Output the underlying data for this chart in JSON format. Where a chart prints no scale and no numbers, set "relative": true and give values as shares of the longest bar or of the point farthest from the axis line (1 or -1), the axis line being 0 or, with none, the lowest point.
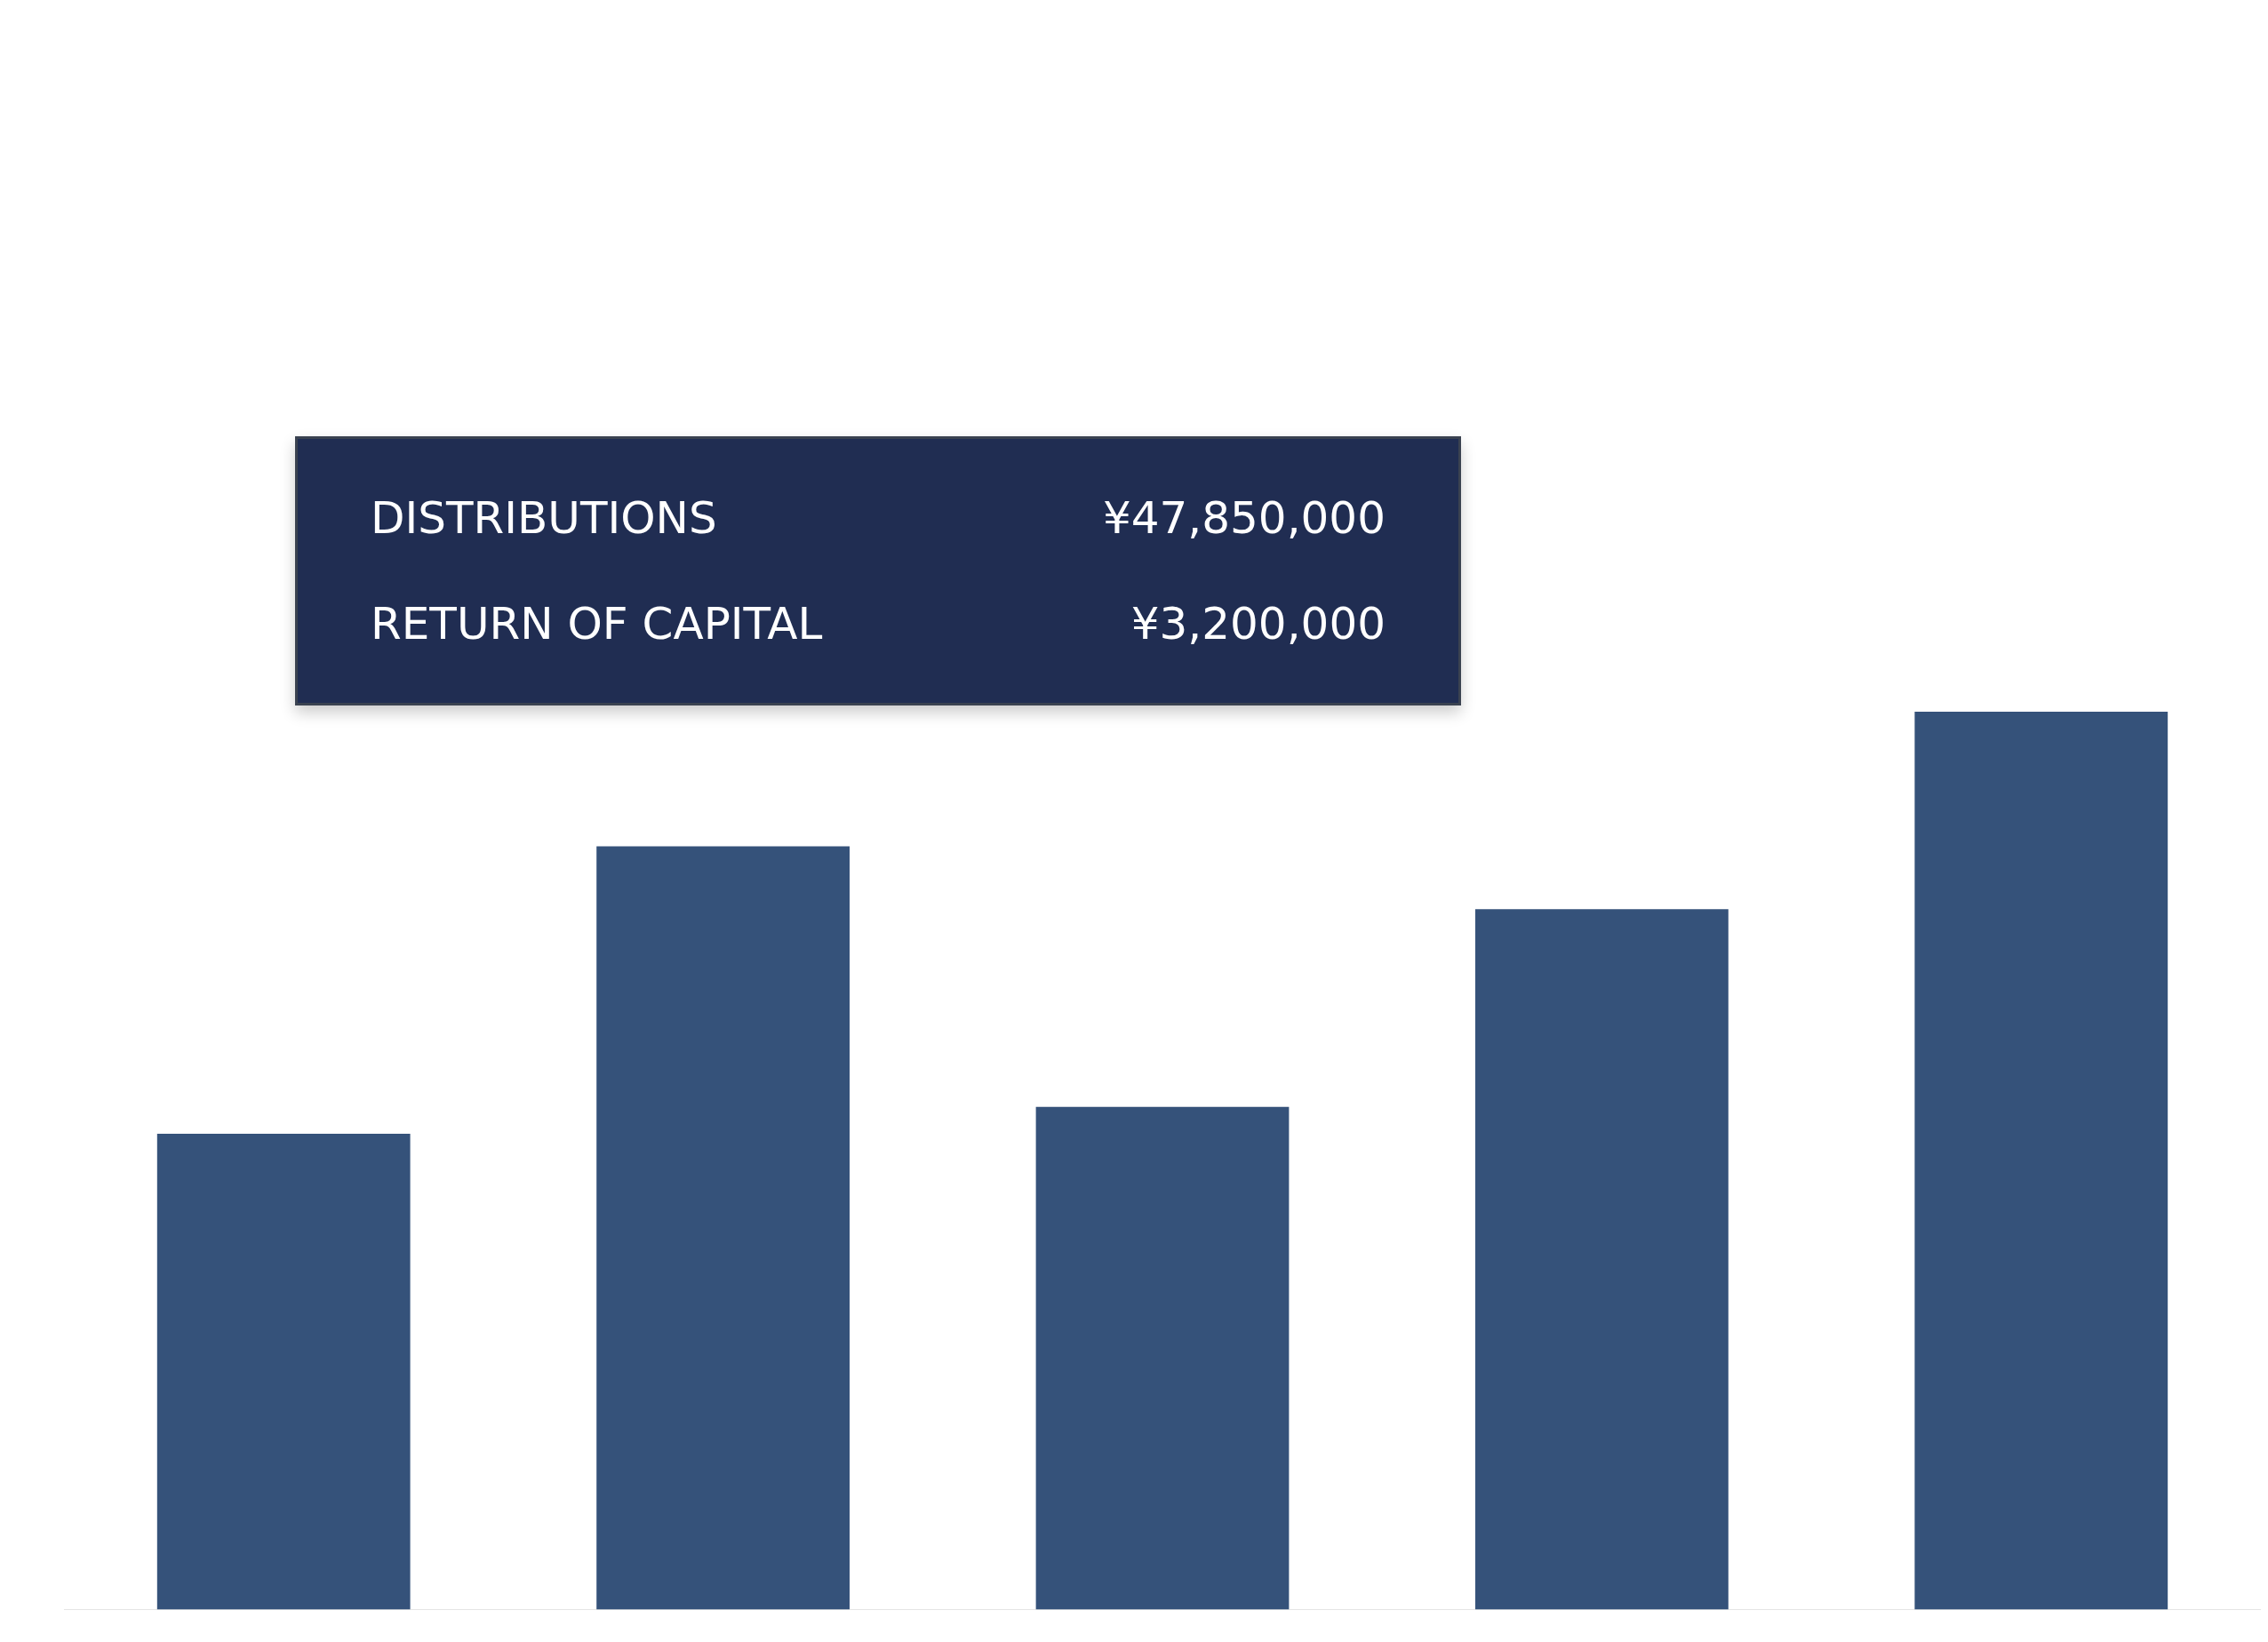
{
  "chart_data": {
    "type": "bar",
    "relative": true,
    "categories": [
      null,
      null,
      null,
      null,
      null
    ],
    "values": [
      0.53,
      0.85,
      0.56,
      0.78,
      1
    ],
    "color": "#35527a",
    "legend": false,
    "annotations": [
      "DISTRIBUTIONS",
      "¥47,850,000",
      "RETURN OF CAPITAL",
      "¥3,200,000"
    ]
  }
}
